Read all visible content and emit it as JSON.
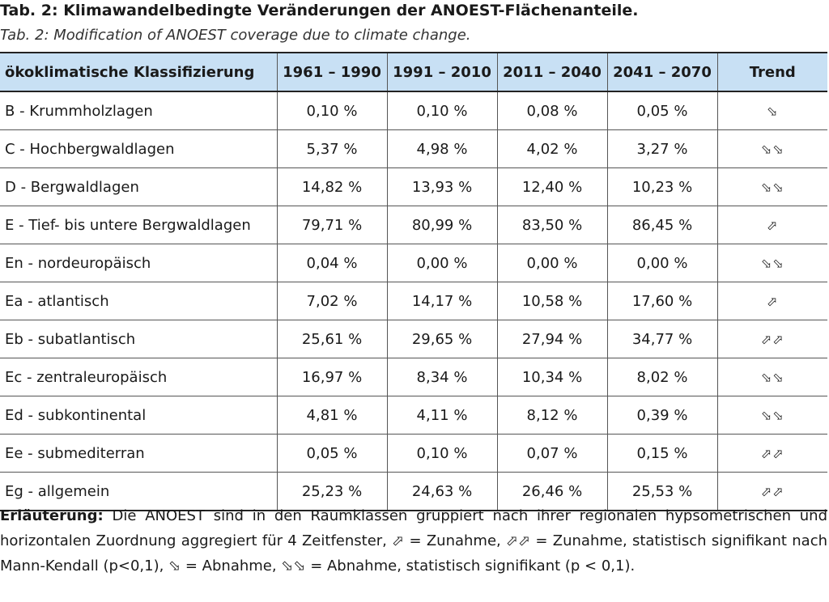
{
  "title_de": "Tab. 2: Klimawandelbedingte Veränderungen der ANOEST-Flächenanteile.",
  "title_en": "Tab. 2: Modification of ANOEST coverage due to climate change.",
  "table": {
    "headers": [
      "ökoklimatische Klassifizierung",
      "1961 – 1990",
      "1991 – 2010",
      "2011 – 2040",
      "2041 – 2070",
      "Trend"
    ],
    "rows": [
      {
        "class": "B - Krummholzlagen",
        "v1": "0,10 %",
        "v2": "0,10 %",
        "v3": "0,08 %",
        "v4": "0,05 %",
        "trend": "⬂"
      },
      {
        "class": "C - Hochbergwaldlagen",
        "v1": "5,37 %",
        "v2": "4,98 %",
        "v3": "4,02 %",
        "v4": "3,27 %",
        "trend": "⬂⬂"
      },
      {
        "class": "D - Bergwaldlagen",
        "v1": "14,82 %",
        "v2": "13,93 %",
        "v3": "12,40 %",
        "v4": "10,23 %",
        "trend": "⬂⬂"
      },
      {
        "class": "E - Tief- bis untere Bergwaldlagen",
        "v1": "79,71 %",
        "v2": "80,99 %",
        "v3": "83,50 %",
        "v4": "86,45 %",
        "trend": "⬀"
      },
      {
        "class": "En - nordeuropäisch",
        "v1": "0,04 %",
        "v2": "0,00 %",
        "v3": "0,00 %",
        "v4": "0,00 %",
        "trend": "⬂⬂"
      },
      {
        "class": "Ea - atlantisch",
        "v1": "7,02 %",
        "v2": "14,17 %",
        "v3": "10,58 %",
        "v4": "17,60 %",
        "trend": "⬀"
      },
      {
        "class": "Eb - subatlantisch",
        "v1": "25,61 %",
        "v2": "29,65 %",
        "v3": "27,94 %",
        "v4": "34,77 %",
        "trend": "⬀⬀"
      },
      {
        "class": "Ec - zentraleuropäisch",
        "v1": "16,97 %",
        "v2": "8,34 %",
        "v3": "10,34 %",
        "v4": "8,02 %",
        "trend": "⬂⬂"
      },
      {
        "class": "Ed - subkontinental",
        "v1": "4,81 %",
        "v2": "4,11 %",
        "v3": "8,12 %",
        "v4": "0,39 %",
        "trend": "⬂⬂"
      },
      {
        "class": "Ee - submediterran",
        "v1": "0,05 %",
        "v2": "0,10 %",
        "v3": "0,07 %",
        "v4": "0,15 %",
        "trend": "⬀⬀"
      },
      {
        "class": "Eg - allgemein",
        "v1": "25,23 %",
        "v2": "24,63 %",
        "v3": "26,46 %",
        "v4": "25,53 %",
        "trend": "⬀⬀"
      }
    ]
  },
  "note": {
    "label": "Erläuterung:",
    "text": " Die ANOEST sind in den Raumklassen gruppiert nach ihrer regionalen hypsometrischen und horizontalen Zuordnung aggregiert für 4 Zeitfenster, ⬀ = Zunahme, ⬀⬀ = Zunahme, statistisch signifikant nach Mann-Kendall (p<0,1), ⬂ = Abnahme, ⬂⬂ = Abnahme, statistisch signifikant (p < 0,1)."
  }
}
